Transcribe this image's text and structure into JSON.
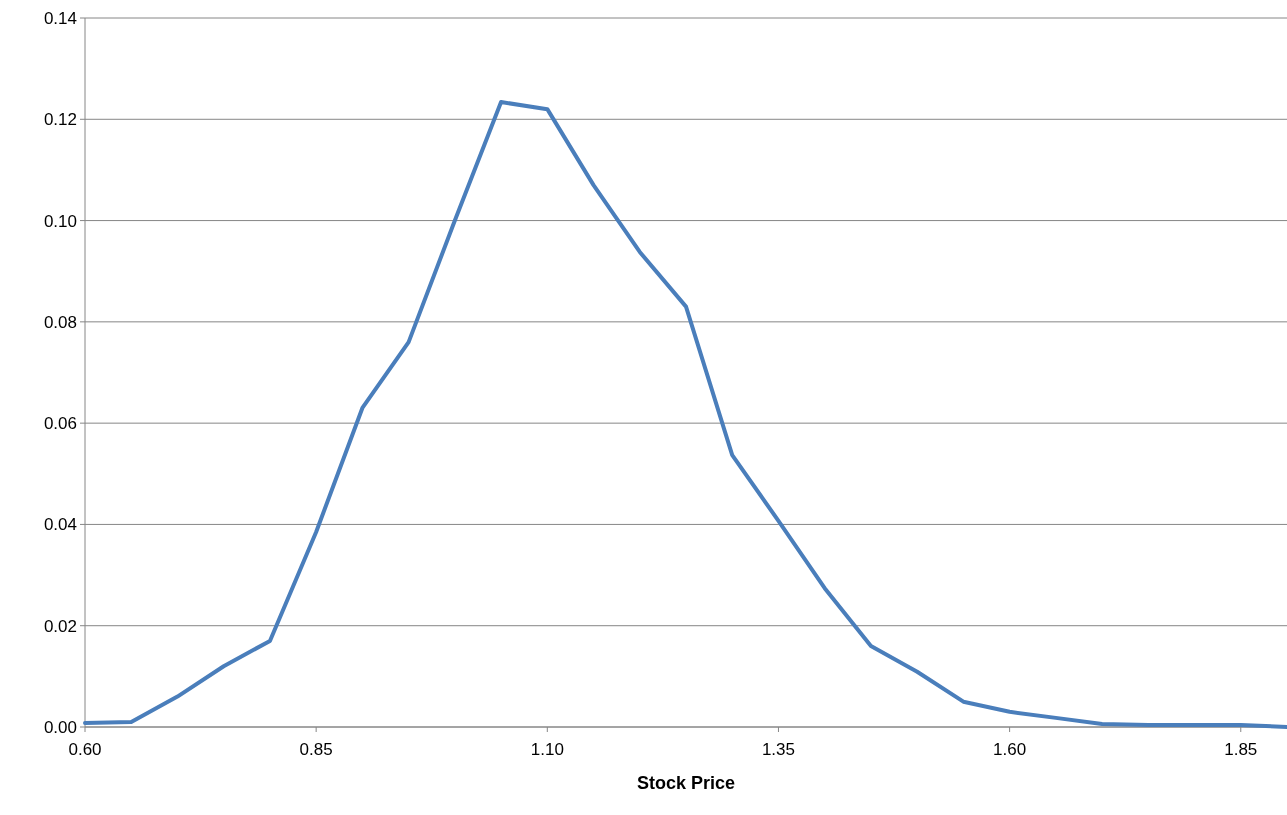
{
  "chart_data": {
    "type": "line",
    "xlabel": "Stock Price",
    "x": [
      0.6,
      0.65,
      0.7,
      0.75,
      0.8,
      0.85,
      0.9,
      0.95,
      1.0,
      1.05,
      1.1,
      1.15,
      1.2,
      1.25,
      1.3,
      1.35,
      1.4,
      1.45,
      1.5,
      1.55,
      1.6,
      1.65,
      1.7,
      1.75,
      1.8,
      1.85,
      1.9
    ],
    "series": [
      {
        "color": "#4a7ebb",
        "values": [
          0.0008,
          0.001,
          0.006,
          0.012,
          0.017,
          0.0385,
          0.063,
          0.076,
          0.1,
          0.1234,
          0.122,
          0.107,
          0.0938,
          0.083,
          0.0537,
          0.0407,
          0.0274,
          0.016,
          0.0109,
          0.005,
          0.003,
          0.0018,
          0.0006,
          0.0004,
          0.0004,
          0.0004,
          0.0
        ]
      }
    ],
    "xlim": [
      0.6,
      1.9
    ],
    "xticks": [
      {
        "value": 0.6,
        "label": "0.60"
      },
      {
        "value": 0.85,
        "label": "0.85"
      },
      {
        "value": 1.1,
        "label": "1.10"
      },
      {
        "value": 1.35,
        "label": "1.35"
      },
      {
        "value": 1.6,
        "label": "1.60"
      },
      {
        "value": 1.85,
        "label": "1.85"
      }
    ],
    "ylim": [
      0,
      0.14
    ],
    "yticks": [
      {
        "value": 0,
        "label": "0.00"
      },
      {
        "value": 0.02,
        "label": "0.02"
      },
      {
        "value": 0.04,
        "label": "0.04"
      },
      {
        "value": 0.06,
        "label": "0.06"
      },
      {
        "value": 0.08,
        "label": "0.08"
      },
      {
        "value": 0.1,
        "label": "0.10"
      },
      {
        "value": 0.12,
        "label": "0.12"
      },
      {
        "value": 0.14,
        "label": "0.14"
      }
    ],
    "grid": "y",
    "marker": "none",
    "line_style": "solid"
  }
}
